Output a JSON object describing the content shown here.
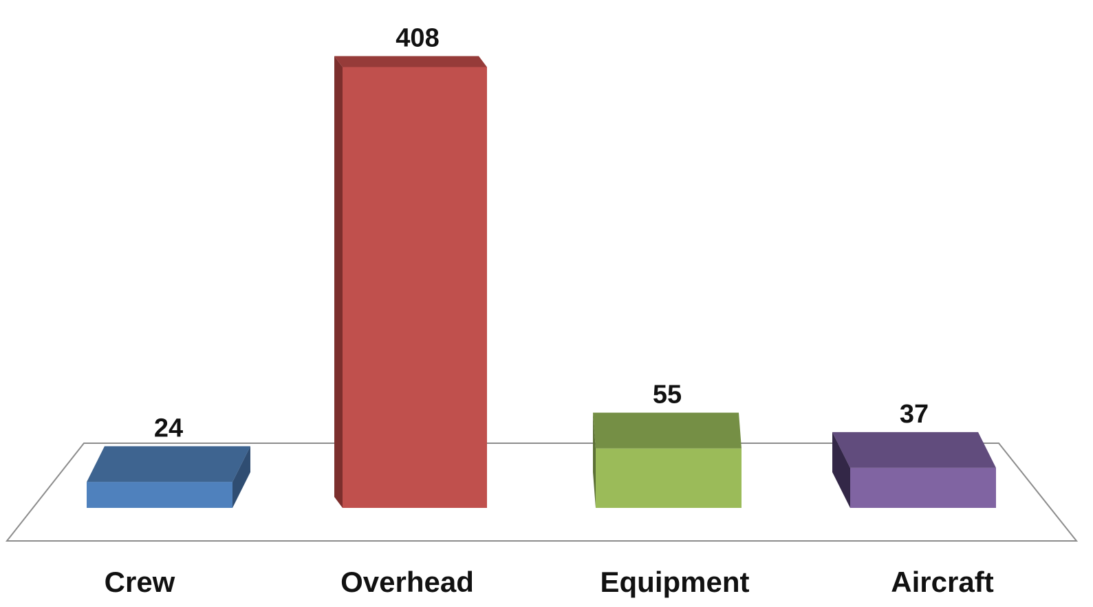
{
  "chart_data": {
    "type": "bar",
    "style": "3d-column",
    "title": "",
    "xlabel": "",
    "ylabel": "",
    "categories": [
      "Crew",
      "Overhead",
      "Equipment",
      "Aircraft"
    ],
    "values": [
      24,
      408,
      55,
      37
    ],
    "data_labels": [
      "24",
      "408",
      "55",
      "37"
    ],
    "colors": {
      "front": [
        "#4f81bd",
        "#c0504d",
        "#9bbb59",
        "#8064a2"
      ],
      "top": [
        "#3e6490",
        "#963b39",
        "#758f45",
        "#614c7d"
      ],
      "side": [
        "#2f4d72",
        "#7c2f2d",
        "#5c7036",
        "#332747"
      ]
    },
    "floor_color": "#ffffff",
    "floor_stroke": "#8c8c8c",
    "grid": false,
    "legend": "none",
    "axes_visible": false
  }
}
